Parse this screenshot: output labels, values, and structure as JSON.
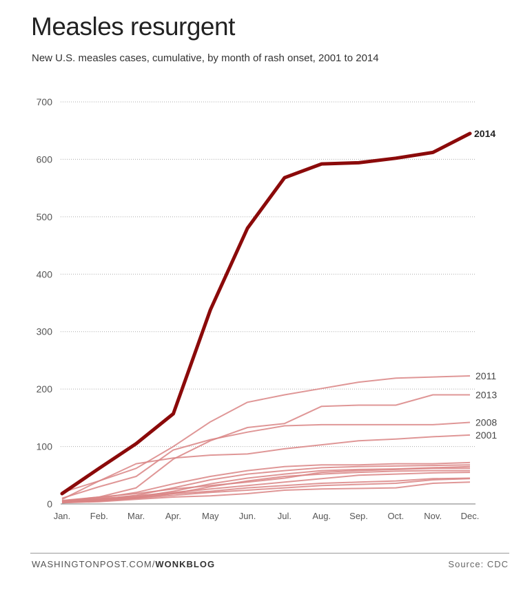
{
  "chart_data": {
    "type": "line",
    "title": "Measles resurgent",
    "subtitle": "New U.S. measles cases, cumulative, by month of rash onset, 2001 to 2014",
    "categories": [
      "Jan.",
      "Feb.",
      "Mar.",
      "Apr.",
      "May",
      "Jun.",
      "Jul.",
      "Aug.",
      "Sep.",
      "Oct.",
      "Nov.",
      "Dec."
    ],
    "yticks": [
      0,
      100,
      200,
      300,
      400,
      500,
      600,
      700
    ],
    "ylim": [
      0,
      700
    ],
    "grid": true,
    "highlight_color": "#8b0a0a",
    "other_color": "#d98484",
    "series": [
      {
        "name": "2014",
        "highlight": true,
        "values": [
          18,
          62,
          105,
          157,
          338,
          480,
          568,
          592,
          594,
          602,
          612,
          645
        ]
      },
      {
        "name": "2011",
        "values": [
          20,
          40,
          62,
          100,
          143,
          177,
          190,
          201,
          212,
          219,
          221,
          223
        ]
      },
      {
        "name": "2013",
        "values": [
          5,
          12,
          28,
          78,
          110,
          133,
          140,
          170,
          172,
          172,
          190,
          190
        ]
      },
      {
        "name": "2008",
        "values": [
          10,
          30,
          48,
          94,
          112,
          125,
          136,
          138,
          138,
          138,
          138,
          142
        ]
      },
      {
        "name": "2001",
        "values": [
          8,
          40,
          70,
          80,
          85,
          87,
          96,
          103,
          110,
          113,
          117,
          120
        ]
      },
      {
        "name": "",
        "values": [
          5,
          10,
          20,
          35,
          48,
          58,
          65,
          68,
          68,
          70,
          70,
          72
        ]
      },
      {
        "name": "",
        "values": [
          4,
          8,
          15,
          28,
          42,
          52,
          58,
          63,
          65,
          66,
          67,
          68
        ]
      },
      {
        "name": "",
        "values": [
          3,
          6,
          12,
          22,
          35,
          45,
          52,
          58,
          60,
          61,
          63,
          65
        ]
      },
      {
        "name": "",
        "values": [
          6,
          12,
          18,
          26,
          32,
          38,
          45,
          55,
          58,
          60,
          62,
          62
        ]
      },
      {
        "name": "",
        "values": [
          2,
          5,
          10,
          18,
          30,
          40,
          48,
          52,
          55,
          57,
          58,
          58
        ]
      },
      {
        "name": "",
        "values": [
          4,
          9,
          14,
          20,
          26,
          32,
          38,
          44,
          50,
          52,
          54,
          55
        ]
      },
      {
        "name": "",
        "values": [
          5,
          8,
          12,
          18,
          22,
          28,
          32,
          36,
          38,
          40,
          44,
          45
        ]
      },
      {
        "name": "",
        "values": [
          3,
          6,
          10,
          15,
          20,
          24,
          28,
          32,
          34,
          36,
          42,
          44
        ]
      },
      {
        "name": "",
        "values": [
          2,
          4,
          8,
          12,
          14,
          18,
          24,
          26,
          27,
          28,
          36,
          38
        ]
      }
    ]
  },
  "footer": {
    "source_prefix": "WASHINGTONPOST.COM/",
    "source_brand": "WONKBLOG",
    "credit": "Source: CDC"
  }
}
